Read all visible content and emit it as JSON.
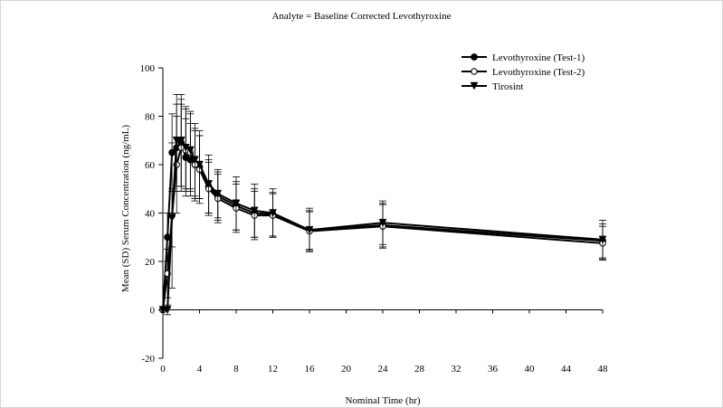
{
  "chart_data": {
    "type": "line",
    "title": "Analyte = Baseline Corrected Levothyroxine",
    "xlabel": "Nominal Time (hr)",
    "ylabel": "Mean (SD) Serum Concentration  (ng/mL)",
    "right_axis_label_fragment": "Mean (SD) Serum Concentration  (ng/mL)",
    "xlim": [
      0,
      48
    ],
    "ylim": [
      -20,
      100
    ],
    "xticks": [
      0,
      4,
      8,
      12,
      16,
      20,
      24,
      28,
      32,
      36,
      40,
      44,
      48
    ],
    "yticks": [
      -20,
      0,
      20,
      40,
      60,
      80,
      100
    ],
    "grid": false,
    "legend_position": "top-right",
    "series": [
      {
        "name": "Levothyroxine (Test-1)",
        "marker": "filled-circle",
        "x": [
          0,
          0.5,
          1,
          1.5,
          2,
          2.5,
          3,
          3.5,
          4,
          5,
          6,
          8,
          10,
          12,
          16,
          24,
          48
        ],
        "values": [
          0,
          30,
          65,
          67,
          69,
          63,
          62,
          60,
          59,
          51,
          47,
          43,
          40,
          39.5,
          33,
          35,
          28.5
        ],
        "sd": [
          0,
          10,
          16,
          18,
          18,
          16,
          15,
          14,
          13,
          11,
          10,
          10,
          10,
          9,
          8,
          9,
          7
        ]
      },
      {
        "name": "Levothyroxine (Test-2)",
        "marker": "open-circle",
        "x": [
          0,
          0.5,
          1,
          1.5,
          2,
          2.5,
          3,
          3.5,
          4,
          5,
          6,
          8,
          10,
          12,
          16,
          24,
          48
        ],
        "values": [
          0,
          15,
          39,
          60,
          67,
          66,
          65,
          60,
          58,
          50,
          46,
          42,
          39,
          39,
          32.5,
          34.5,
          27.5
        ],
        "sd": [
          0,
          10,
          30,
          20,
          18,
          17,
          16,
          15,
          14,
          11,
          10,
          10,
          10,
          9,
          8,
          9,
          7
        ]
      },
      {
        "name": "Tirosint",
        "marker": "filled-triangle-down",
        "x": [
          0,
          0.5,
          1,
          1.5,
          2,
          2.5,
          3,
          3.5,
          4,
          5,
          6,
          8,
          10,
          12,
          16,
          24,
          48
        ],
        "values": [
          0,
          0,
          38,
          70,
          70,
          67,
          66,
          62,
          60,
          52,
          48,
          44,
          41,
          40,
          33,
          36,
          29
        ],
        "sd": [
          0,
          2,
          12,
          19,
          19,
          17,
          16,
          15,
          14,
          12,
          10,
          11,
          11,
          10,
          9,
          9,
          8
        ]
      }
    ]
  }
}
